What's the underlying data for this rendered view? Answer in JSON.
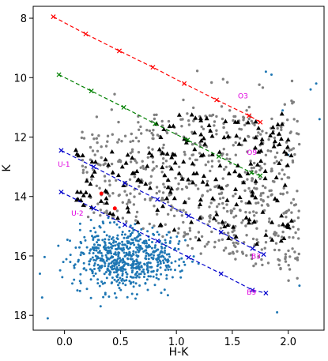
{
  "chart_data": {
    "type": "scatter",
    "xlabel": "H-K",
    "ylabel": "K",
    "xlim": [
      -0.28,
      2.32
    ],
    "ylim": [
      18.5,
      7.6
    ],
    "y_inverted": true,
    "x_ticks": [
      "0.0",
      "0.5",
      "1.0",
      "1.5",
      "2.0"
    ],
    "y_ticks": [
      "8",
      "10",
      "12",
      "14",
      "16",
      "18"
    ],
    "x_tick_values": [
      0.0,
      0.5,
      1.0,
      1.5,
      2.0
    ],
    "y_tick_values": [
      8,
      10,
      12,
      14,
      16,
      18
    ],
    "grid": false,
    "colors": {
      "o3_line": "#ff0000",
      "o9_line": "#008000",
      "b_lines": "#0000cc",
      "gray_stars": "#808080",
      "blue_stars": "#1f77b4",
      "triangles": "#000000",
      "red_stars": "#ff0000",
      "annotations": "#e000e0"
    },
    "reddening_vectors": [
      {
        "label": "O3",
        "x": [
          -0.1,
          0.19,
          0.49,
          0.79,
          1.07,
          1.36,
          1.65,
          1.75
        ],
        "y": [
          7.95,
          8.53,
          9.1,
          9.65,
          10.2,
          10.75,
          11.28,
          11.5
        ],
        "label_at": [
          1.55,
          10.7
        ]
      },
      {
        "label": "O9",
        "x": [
          -0.05,
          0.24,
          0.53,
          0.81,
          1.1,
          1.38,
          1.67,
          1.75
        ],
        "y": [
          9.9,
          10.45,
          11.0,
          11.55,
          12.1,
          12.65,
          13.2,
          13.3
        ],
        "label_at": [
          1.63,
          12.6
        ]
      },
      {
        "label": "B3",
        "x": [
          -0.03,
          0.26,
          0.54,
          0.83,
          1.11,
          1.4,
          1.68,
          1.78
        ],
        "y": [
          12.45,
          13.0,
          13.55,
          14.1,
          14.65,
          15.2,
          15.75,
          15.95
        ],
        "label_at": [
          1.67,
          16.1
        ]
      },
      {
        "label": "B9",
        "x": [
          -0.03,
          0.26,
          0.54,
          0.83,
          1.11,
          1.4,
          1.68,
          1.8
        ],
        "y": [
          13.85,
          14.4,
          14.95,
          15.5,
          16.05,
          16.6,
          17.15,
          17.25
        ],
        "label_at": [
          1.63,
          17.3
        ]
      }
    ],
    "annotations": [
      {
        "text": "U-1",
        "x": -0.06,
        "y": 13.0
      },
      {
        "text": "U-2",
        "x": 0.06,
        "y": 14.65
      }
    ],
    "series_summary": {
      "gray_stars_approx_count": 620,
      "blue_stars_approx_count": 640,
      "triangles_approx_count": 210,
      "red_stars": [
        {
          "x": 0.33,
          "y": 13.9
        },
        {
          "x": 0.45,
          "y": 14.4
        }
      ]
    }
  }
}
